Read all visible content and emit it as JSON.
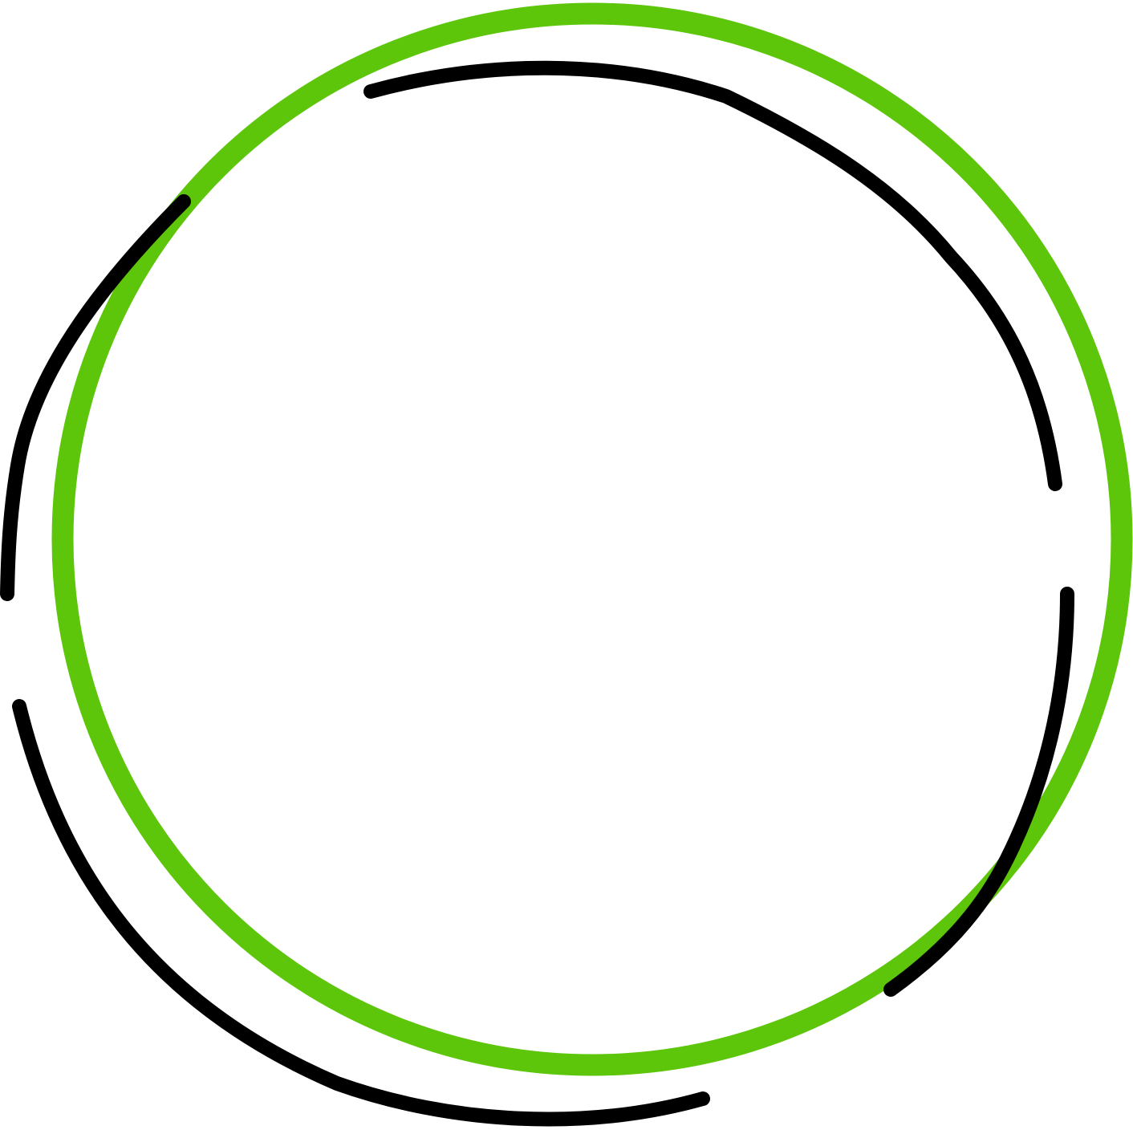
{
  "graphic": {
    "ring_color": "#5dc60b",
    "arc_color": "#000000",
    "background": "#ffffff"
  }
}
